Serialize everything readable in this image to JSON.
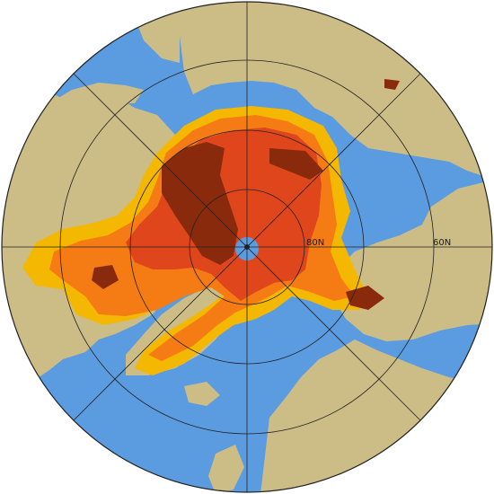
{
  "map": {
    "projection": "north-polar-stereographic",
    "latitude_labels": [
      "80N",
      "60N"
    ],
    "parallels_deg": [
      80,
      70,
      60,
      50
    ],
    "meridian_spacing_deg": 45,
    "colors": {
      "ocean": "#5b9be0",
      "land": "#ccbc85",
      "grid_lines": "#222222",
      "ice_low": "#f5b800",
      "ice_mid": "#f57c14",
      "ice_high": "#e0461c",
      "ice_max": "#8a2a0c",
      "pole_hole": "#5b9be0"
    },
    "legend": "none",
    "title": ""
  }
}
